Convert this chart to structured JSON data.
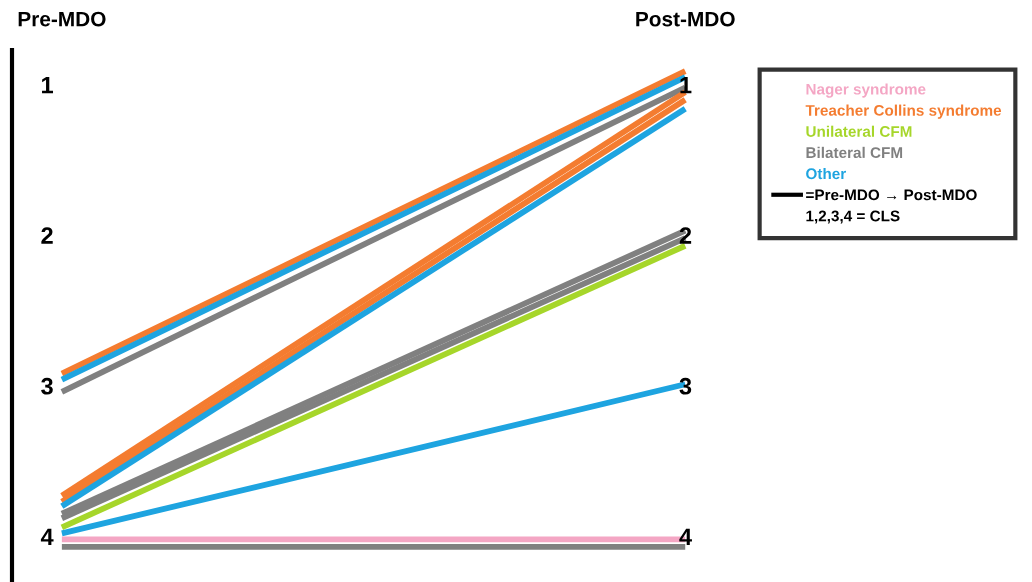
{
  "chart_data": {
    "type": "line",
    "categories": [
      "Pre-MDO",
      "Post-MDO"
    ],
    "ylim": [
      4.29,
      0.77
    ],
    "yticks": [
      1,
      2,
      3,
      4
    ],
    "y2lim": [
      4.29,
      0.77
    ],
    "y2ticks": [
      1,
      2,
      3,
      4
    ],
    "grid": false,
    "legend": "top right",
    "marker": "none",
    "line_style": "solid",
    "series": [
      {
        "name": "Nager syndrome",
        "color": "#f4a6c4",
        "values": [
          4.02,
          4.02
        ]
      },
      {
        "name": "Treacher Collins syndrome",
        "color": "#f47c30",
        "values": [
          2.92,
          0.91
        ]
      },
      {
        "name": "Unilateral CFM",
        "color": "#a6d62a",
        "values": [
          3.94,
          2.07
        ]
      },
      {
        "name": "Bilateral CFM",
        "color": "#808080",
        "values": [
          3.04,
          1.02
        ]
      },
      {
        "name": "Other",
        "color": "#1ea4e0",
        "values": [
          2.96,
          0.95
        ]
      },
      {
        "color": "#f47c30",
        "values": [
          3.73,
          1.05
        ]
      },
      {
        "color": "#f47c30",
        "values": [
          3.77,
          1.1
        ]
      },
      {
        "color": "#1ea4e0",
        "values": [
          3.8,
          1.16
        ]
      },
      {
        "color": "#808080",
        "values": [
          3.85,
          1.97
        ]
      },
      {
        "color": "#808080",
        "values": [
          3.88,
          2.02
        ]
      },
      {
        "color": "#1ea4e0",
        "values": [
          3.98,
          2.99
        ]
      },
      {
        "color": "#808080",
        "values": [
          4.07,
          4.07
        ]
      }
    ],
    "annotations": [
      "=Pre-MDO → Post-MDO",
      "1,2,3,4 = CLS"
    ]
  }
}
